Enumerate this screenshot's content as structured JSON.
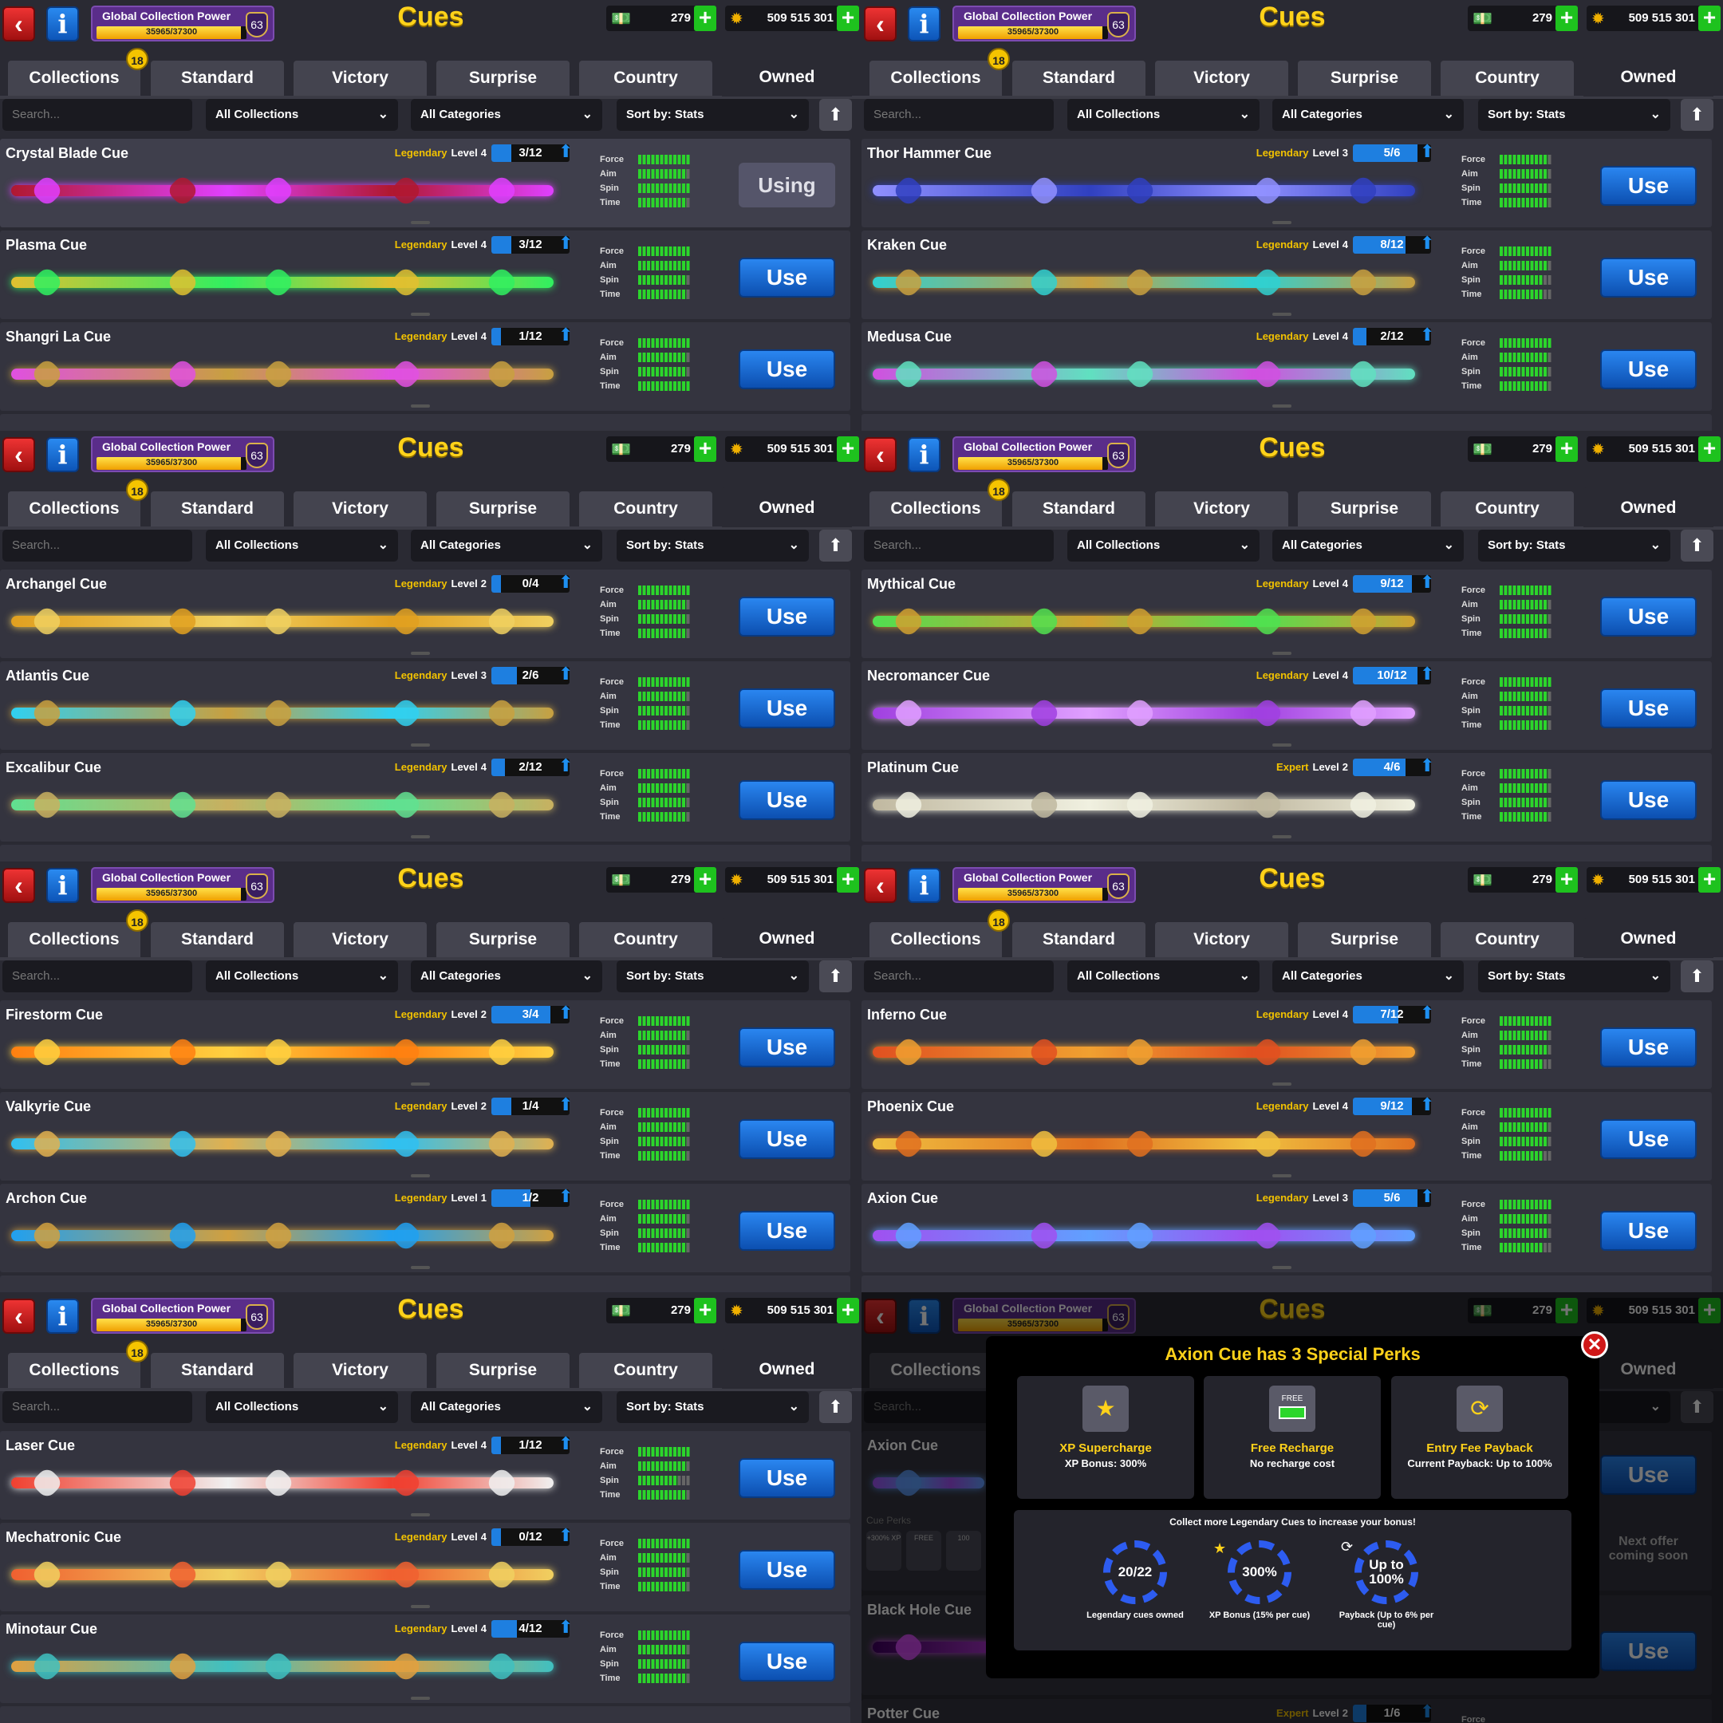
{
  "header": {
    "back_icon": "chevron-left-icon",
    "info_icon": "info-icon",
    "gcp_label": "Global Collection Power",
    "gcp_progress": "35965/37300",
    "gcp_current": 35965,
    "gcp_max": 37300,
    "gcp_level": "63",
    "title": "Cues",
    "cash": "279",
    "coins": "509 515 301",
    "plus": "+"
  },
  "tabs": [
    {
      "label": "Collections",
      "badge": "18"
    },
    {
      "label": "Standard"
    },
    {
      "label": "Victory"
    },
    {
      "label": "Surprise"
    },
    {
      "label": "Country"
    },
    {
      "label": "Owned",
      "active": true
    }
  ],
  "filters": {
    "search_placeholder": "Search...",
    "collections": "All Collections",
    "categories": "All Categories",
    "sort": "Sort by: Stats"
  },
  "stat_labels": [
    "Force",
    "Aim",
    "Spin",
    "Time"
  ],
  "labels": {
    "use": "Use",
    "using": "Using",
    "level_prefix": "Level"
  },
  "colors": {
    "legendary": "#f2c200",
    "use_button": "#1e6fd6",
    "stat_fill": "#2bd62b"
  },
  "panels": [
    {
      "cues": [
        {
          "name": "Crystal Blade Cue",
          "rarity": "Legendary",
          "level": "4",
          "progress": "3/12",
          "pct": 0.25,
          "stats": [
            12,
            11,
            12,
            11
          ],
          "state": "Using",
          "colors": [
            "#b01830",
            "#e040ff"
          ]
        },
        {
          "name": "Plasma Cue",
          "rarity": "Legendary",
          "level": "4",
          "progress": "3/12",
          "pct": 0.25,
          "stats": [
            12,
            12,
            11,
            11
          ],
          "state": "Use",
          "colors": [
            "#e0c030",
            "#30f060"
          ]
        },
        {
          "name": "Shangri La Cue",
          "rarity": "Legendary",
          "level": "4",
          "progress": "1/12",
          "pct": 0.08,
          "stats": [
            12,
            11,
            11,
            12
          ],
          "state": "Use",
          "colors": [
            "#e050e0",
            "#c8a040"
          ]
        }
      ]
    },
    {
      "cues": [
        {
          "name": "Thor Hammer Cue",
          "rarity": "Legendary",
          "level": "3",
          "progress": "5/6",
          "pct": 0.83,
          "stats": [
            11,
            11,
            11,
            11
          ],
          "state": "Use",
          "colors": [
            "#9090ff",
            "#3040c0"
          ]
        },
        {
          "name": "Kraken Cue",
          "rarity": "Legendary",
          "level": "4",
          "progress": "8/12",
          "pct": 0.67,
          "stats": [
            12,
            11,
            10,
            10
          ],
          "state": "Use",
          "colors": [
            "#30d0d0",
            "#c8a040"
          ]
        },
        {
          "name": "Medusa Cue",
          "rarity": "Legendary",
          "level": "4",
          "progress": "2/12",
          "pct": 0.17,
          "stats": [
            12,
            11,
            11,
            11
          ],
          "state": "Use",
          "colors": [
            "#d050e0",
            "#60e0c0"
          ]
        }
      ]
    },
    {
      "cues": [
        {
          "name": "Archangel Cue",
          "rarity": "Legendary",
          "level": "2",
          "progress": "0/4",
          "pct": 0,
          "stats": [
            12,
            11,
            11,
            11
          ],
          "state": "Use",
          "colors": [
            "#e0a020",
            "#f0d060"
          ]
        },
        {
          "name": "Atlantis Cue",
          "rarity": "Legendary",
          "level": "3",
          "progress": "2/6",
          "pct": 0.33,
          "stats": [
            12,
            11,
            11,
            11
          ],
          "state": "Use",
          "colors": [
            "#30d0f0",
            "#c8a040"
          ]
        },
        {
          "name": "Excalibur Cue",
          "rarity": "Legendary",
          "level": "4",
          "progress": "2/12",
          "pct": 0.17,
          "stats": [
            12,
            11,
            11,
            11
          ],
          "state": "Use",
          "colors": [
            "#60e090",
            "#c8b060"
          ]
        }
      ]
    },
    {
      "cues": [
        {
          "name": "Mythical Cue",
          "rarity": "Legendary",
          "level": "4",
          "progress": "9/12",
          "pct": 0.75,
          "stats": [
            12,
            11,
            11,
            11
          ],
          "state": "Use",
          "colors": [
            "#50e050",
            "#d0a030"
          ]
        },
        {
          "name": "Necromancer Cue",
          "rarity": "Legendary",
          "level": "4",
          "progress": "10/12",
          "pct": 0.83,
          "stats": [
            12,
            11,
            11,
            11
          ],
          "state": "Use",
          "colors": [
            "#a040e0",
            "#e0a0ff"
          ]
        },
        {
          "name": "Platinum Cue",
          "rarity": "Expert",
          "level": "2",
          "progress": "4/6",
          "pct": 0.67,
          "stats": [
            11,
            11,
            11,
            11
          ],
          "state": "Use",
          "colors": [
            "#c0b8a0",
            "#f0f0e0"
          ]
        }
      ]
    },
    {
      "cues": [
        {
          "name": "Firestorm Cue",
          "rarity": "Legendary",
          "level": "2",
          "progress": "3/4",
          "pct": 0.75,
          "stats": [
            12,
            11,
            11,
            11
          ],
          "state": "Use",
          "colors": [
            "#ff8010",
            "#ffd040"
          ]
        },
        {
          "name": "Valkyrie Cue",
          "rarity": "Legendary",
          "level": "2",
          "progress": "1/4",
          "pct": 0.25,
          "stats": [
            12,
            11,
            11,
            11
          ],
          "state": "Use",
          "colors": [
            "#30c0f0",
            "#e0b050"
          ]
        },
        {
          "name": "Archon Cue",
          "rarity": "Legendary",
          "level": "1",
          "progress": "1/2",
          "pct": 0.5,
          "stats": [
            12,
            11,
            11,
            11
          ],
          "state": "Use",
          "colors": [
            "#20a0f0",
            "#d0a040"
          ]
        }
      ]
    },
    {
      "cues": [
        {
          "name": "Inferno Cue",
          "rarity": "Legendary",
          "level": "4",
          "progress": "7/12",
          "pct": 0.58,
          "stats": [
            12,
            11,
            11,
            10
          ],
          "state": "Use",
          "colors": [
            "#e05020",
            "#f0a030"
          ]
        },
        {
          "name": "Phoenix Cue",
          "rarity": "Legendary",
          "level": "4",
          "progress": "9/12",
          "pct": 0.75,
          "stats": [
            12,
            11,
            11,
            10
          ],
          "state": "Use",
          "colors": [
            "#f0c040",
            "#e07020"
          ]
        },
        {
          "name": "Axion Cue",
          "rarity": "Legendary",
          "level": "3",
          "progress": "5/6",
          "pct": 0.83,
          "stats": [
            12,
            11,
            11,
            10
          ],
          "state": "Use",
          "colors": [
            "#a050f0",
            "#60a0ff"
          ]
        }
      ]
    },
    {
      "cues": [
        {
          "name": "Laser Cue",
          "rarity": "Legendary",
          "level": "4",
          "progress": "1/12",
          "pct": 0.08,
          "stats": [
            12,
            11,
            9,
            11
          ],
          "state": "Use",
          "colors": [
            "#f04030",
            "#f0f0f0"
          ]
        },
        {
          "name": "Mechatronic Cue",
          "rarity": "Legendary",
          "level": "4",
          "progress": "0/12",
          "pct": 0,
          "stats": [
            12,
            11,
            11,
            11
          ],
          "state": "Use",
          "colors": [
            "#f06030",
            "#f0d060"
          ]
        },
        {
          "name": "Minotaur Cue",
          "rarity": "Legendary",
          "level": "4",
          "progress": "4/12",
          "pct": 0.33,
          "stats": [
            12,
            11,
            11,
            11
          ],
          "state": "Use",
          "colors": [
            "#e0a040",
            "#40c0c0"
          ]
        }
      ]
    }
  ],
  "last_panel": {
    "axion_name": "Axion Cue",
    "cue_perks_label": "Cue Perks",
    "perk_chips": [
      "+300% XP",
      "FREE",
      "100"
    ],
    "next_offer": "Next offer coming soon",
    "black_hole_name": "Black Hole Cue",
    "potter": {
      "name": "Potter Cue",
      "rarity": "Expert",
      "level": "2",
      "progress": "1/6",
      "pct": 0.17,
      "stat_label": "Force"
    },
    "modal": {
      "title": "Axion Cue has 3 Special Perks",
      "perks": [
        {
          "icon": "star-chevron-icon",
          "name": "XP Supercharge",
          "desc": "XP Bonus: 300%"
        },
        {
          "icon": "battery-icon",
          "icon_text": "FREE",
          "name": "Free Recharge",
          "desc": "No recharge cost"
        },
        {
          "icon": "coin-refresh-icon",
          "name": "Entry Fee Payback",
          "desc": "Current Payback: Up to 100%"
        }
      ],
      "bonus_title": "Collect more Legendary Cues to increase your bonus!",
      "rings": [
        {
          "value": "20/22",
          "label": "Legendary cues owned"
        },
        {
          "value": "300%",
          "label": "XP Bonus (15% per cue)"
        },
        {
          "value": "Up to 100%",
          "label": "Payback (Up to 6% per cue)"
        }
      ]
    }
  }
}
